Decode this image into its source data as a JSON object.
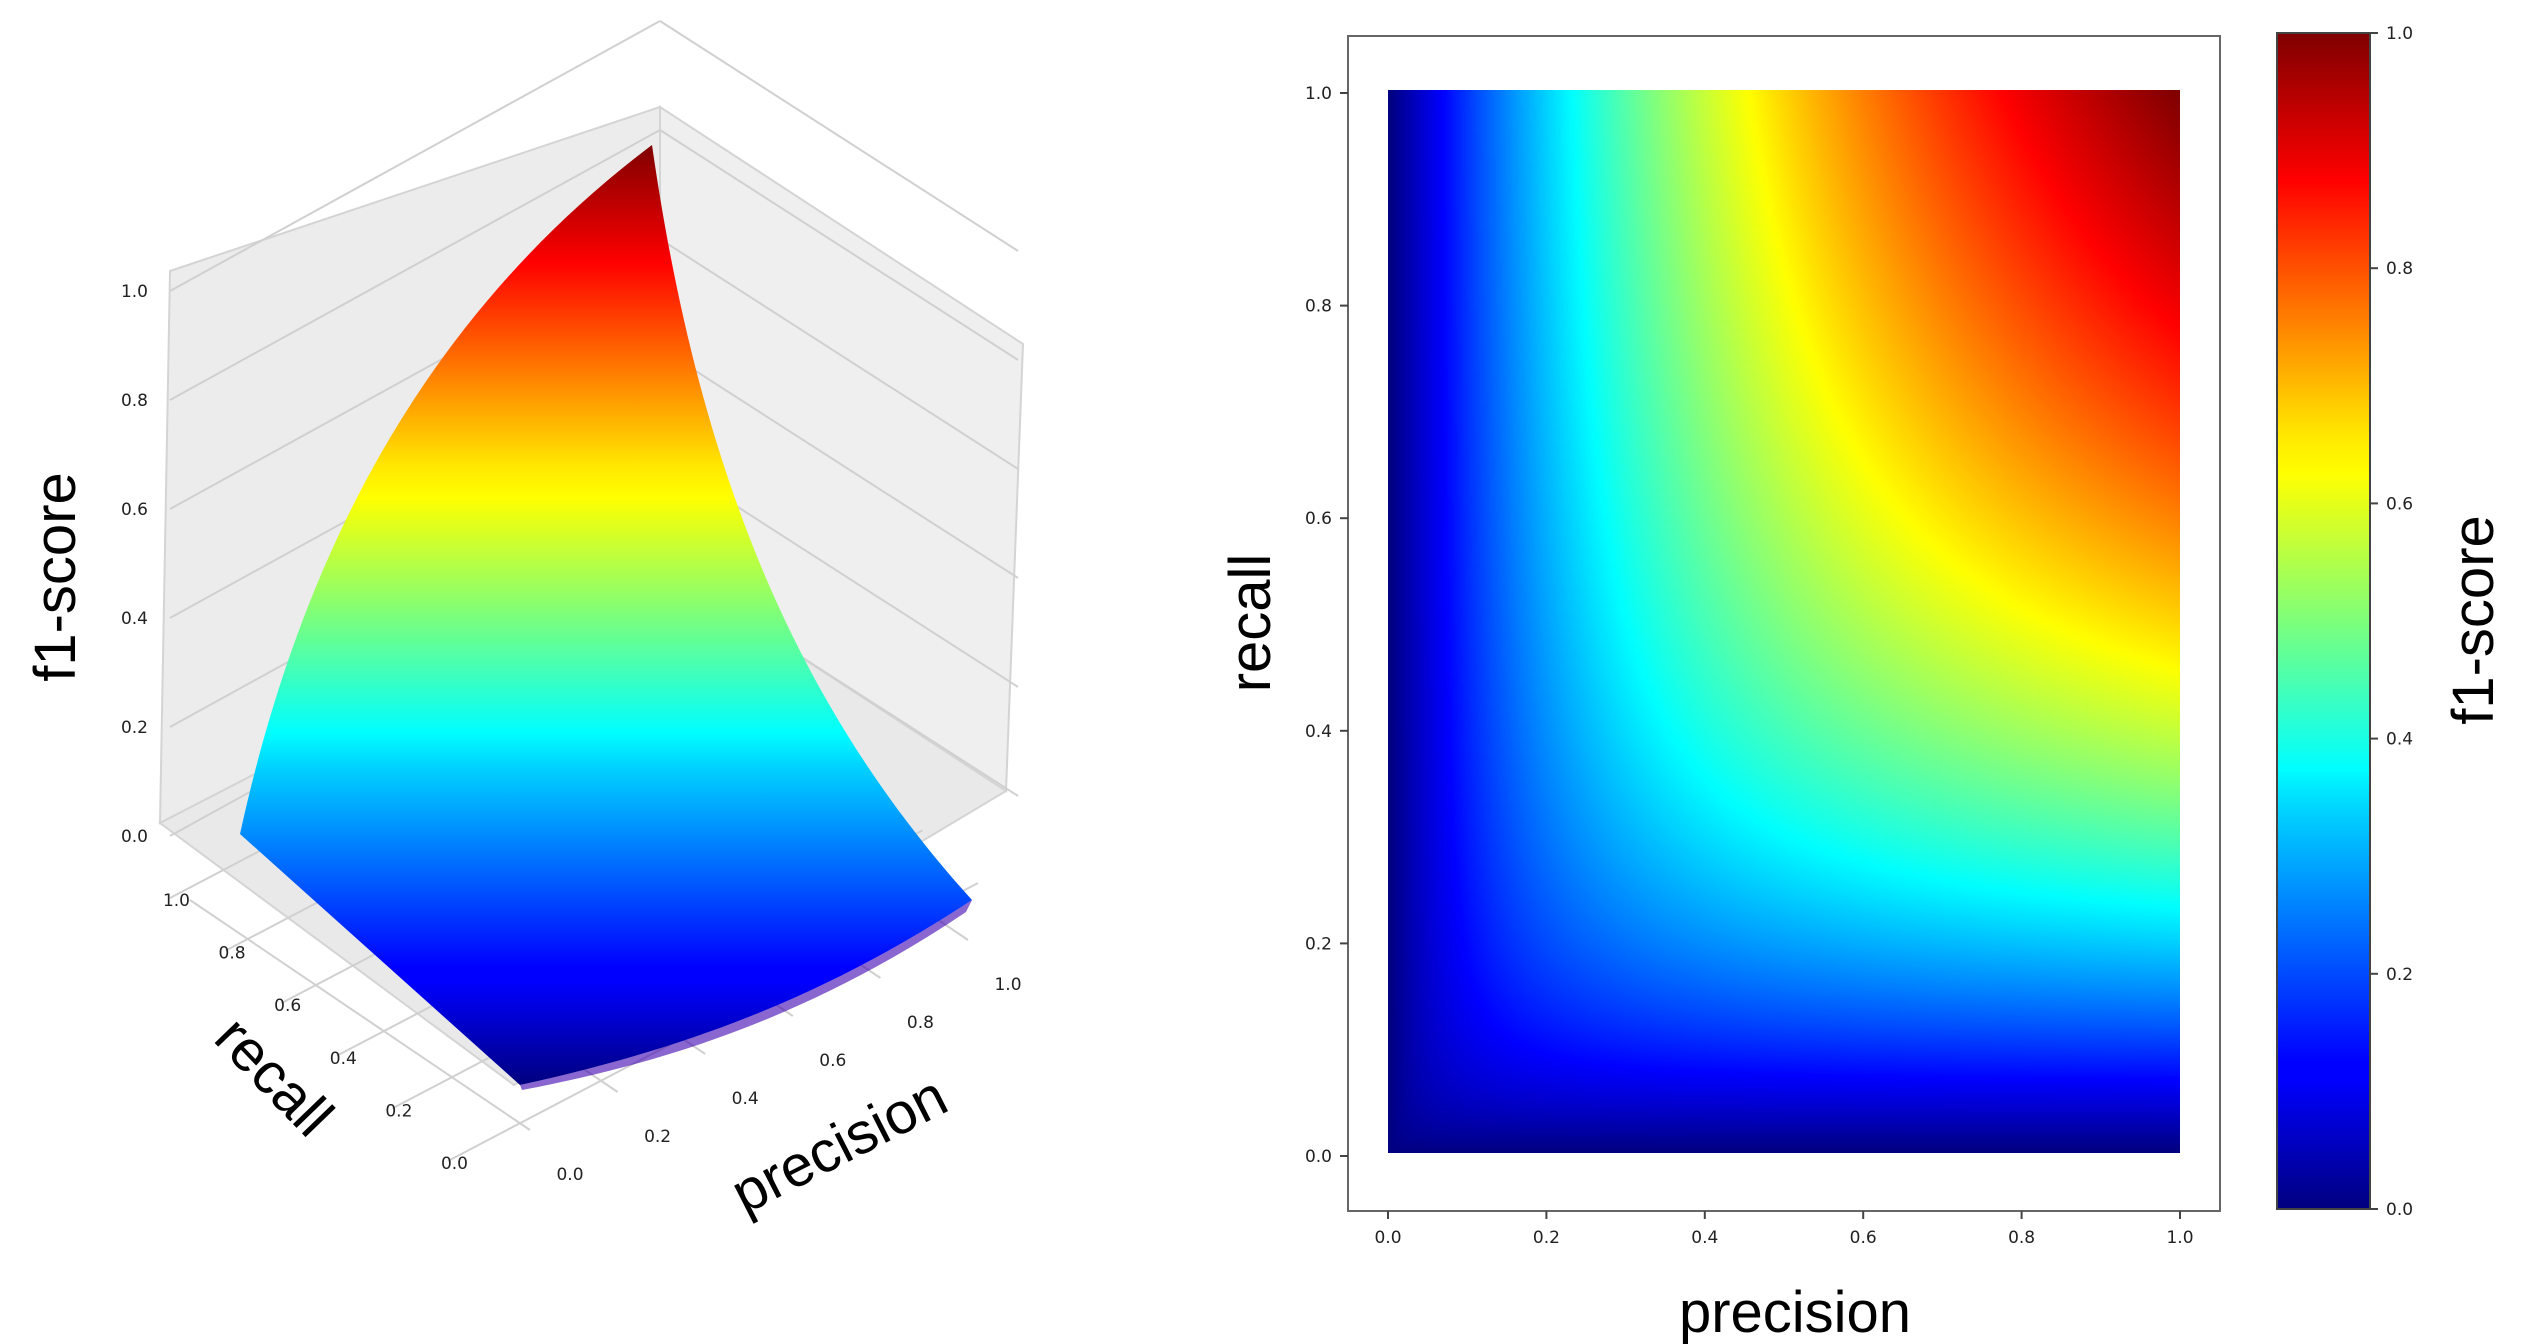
{
  "chart_data": [
    {
      "type": "surface3d",
      "formula": "f1 = 2*precision*recall/(precision+recall)",
      "x": {
        "label": "precision",
        "ticks": [
          "0.0",
          "0.2",
          "0.4",
          "0.6",
          "0.8",
          "1.0"
        ],
        "range": [
          0,
          1
        ]
      },
      "y": {
        "label": "recall",
        "ticks": [
          "0.0",
          "0.2",
          "0.4",
          "0.6",
          "0.8",
          "1.0"
        ],
        "range": [
          0,
          1
        ]
      },
      "z": {
        "label": "f1-score",
        "ticks": [
          "0.0",
          "0.2",
          "0.4",
          "0.6",
          "0.8",
          "1.0"
        ],
        "range": [
          0,
          1
        ]
      },
      "colormap": "jet"
    },
    {
      "type": "heatmap",
      "formula": "f1 = 2*precision*recall/(precision+recall)",
      "x": {
        "label": "precision",
        "ticks": [
          "0.0",
          "0.2",
          "0.4",
          "0.6",
          "0.8",
          "1.0"
        ],
        "range": [
          0,
          1
        ]
      },
      "y": {
        "label": "recall",
        "ticks": [
          "0.0",
          "0.2",
          "0.4",
          "0.6",
          "0.8",
          "1.0"
        ],
        "range": [
          0,
          1
        ]
      },
      "colorbar": {
        "label": "f1-score",
        "ticks": [
          "0.0",
          "0.2",
          "0.4",
          "0.6",
          "0.8",
          "1.0"
        ],
        "range": [
          0,
          1
        ]
      },
      "colormap": "jet"
    }
  ]
}
